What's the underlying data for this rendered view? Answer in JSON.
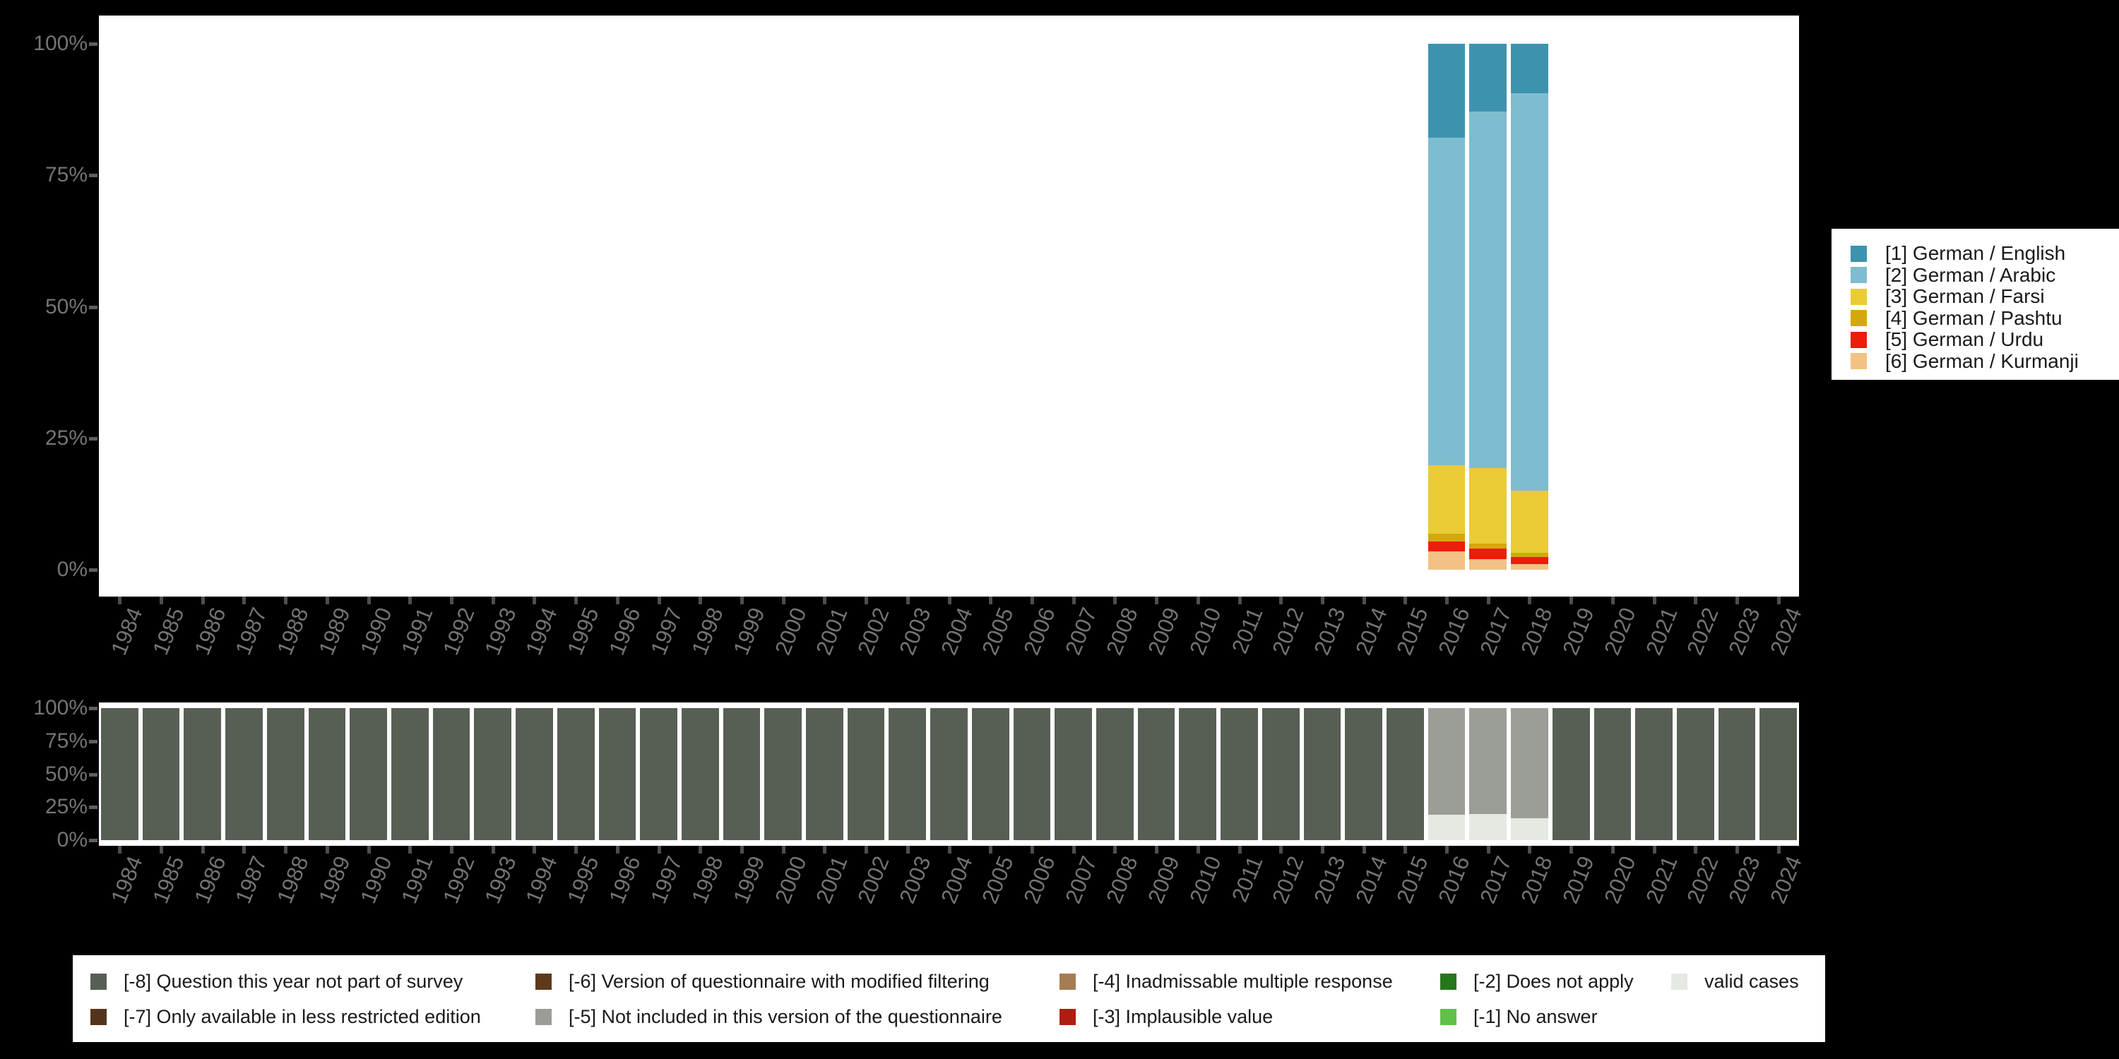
{
  "colors": {
    "background": "#000000",
    "panel": "#ffffff",
    "axis_text": "#747474",
    "tick": "#4e4e4e",
    "legend_text": "#1a1a1a"
  },
  "chart_data": [
    {
      "id": "values-chart",
      "type": "bar",
      "stacked_percent": true,
      "title": "",
      "xlabel": "",
      "ylabel": "",
      "grid": false,
      "legend_position": "right",
      "y_ticks": [
        "100%",
        "75%",
        "50%",
        "25%",
        "0%"
      ],
      "ylim": [
        0,
        100
      ],
      "categories": [
        1984,
        1985,
        1986,
        1987,
        1988,
        1989,
        1990,
        1991,
        1992,
        1993,
        1994,
        1995,
        1996,
        1997,
        1998,
        1999,
        2000,
        2001,
        2002,
        2003,
        2004,
        2005,
        2006,
        2007,
        2008,
        2009,
        2010,
        2011,
        2012,
        2013,
        2014,
        2015,
        2016,
        2017,
        2018,
        2019,
        2020,
        2021,
        2022,
        2023,
        2024
      ],
      "series": [
        {
          "name": "[1] German / English",
          "color": "#3d93ad",
          "values": {
            "2016": 17.9,
            "2017": 12.9,
            "2018": 9.4
          }
        },
        {
          "name": "[2] German / Arabic",
          "color": "#7ebccf",
          "values": {
            "2016": 62.3,
            "2017": 67.8,
            "2018": 75.6
          }
        },
        {
          "name": "[3] German / Farsi",
          "color": "#e9cc35",
          "values": {
            "2016": 12.9,
            "2017": 14.4,
            "2018": 11.8
          }
        },
        {
          "name": "[4] German / Pashtu",
          "color": "#d2a90c",
          "values": {
            "2016": 1.5,
            "2017": 0.9,
            "2018": 0.8
          }
        },
        {
          "name": "[5] German / Urdu",
          "color": "#ee1c0a",
          "values": {
            "2016": 1.9,
            "2017": 2.0,
            "2018": 1.3
          }
        },
        {
          "name": "[6] German / Kurmanji",
          "color": "#f2c183",
          "values": {
            "2016": 3.5,
            "2017": 2.0,
            "2018": 1.1
          }
        }
      ]
    },
    {
      "id": "missings-chart",
      "type": "bar",
      "stacked_percent": true,
      "title": "",
      "xlabel": "",
      "ylabel": "",
      "grid": false,
      "legend_position": "bottom",
      "y_ticks": [
        "100%",
        "75%",
        "50%",
        "25%",
        "0%"
      ],
      "ylim": [
        0,
        100
      ],
      "categories": [
        1984,
        1985,
        1986,
        1987,
        1988,
        1989,
        1990,
        1991,
        1992,
        1993,
        1994,
        1995,
        1996,
        1997,
        1998,
        1999,
        2000,
        2001,
        2002,
        2003,
        2004,
        2005,
        2006,
        2007,
        2008,
        2009,
        2010,
        2011,
        2012,
        2013,
        2014,
        2015,
        2016,
        2017,
        2018,
        2019,
        2020,
        2021,
        2022,
        2023,
        2024
      ],
      "series": [
        {
          "name": "[-8] Question this year not part of survey",
          "color": "#575f55",
          "values": [
            100,
            100,
            100,
            100,
            100,
            100,
            100,
            100,
            100,
            100,
            100,
            100,
            100,
            100,
            100,
            100,
            100,
            100,
            100,
            100,
            100,
            100,
            100,
            100,
            100,
            100,
            100,
            100,
            100,
            100,
            100,
            100,
            0,
            0,
            0,
            100,
            100,
            100,
            100,
            100,
            100
          ]
        },
        {
          "name": "[-5] Not included in this version of the questionnaire",
          "color": "#9a9e96",
          "values": [
            0,
            0,
            0,
            0,
            0,
            0,
            0,
            0,
            0,
            0,
            0,
            0,
            0,
            0,
            0,
            0,
            0,
            0,
            0,
            0,
            0,
            0,
            0,
            0,
            0,
            0,
            0,
            0,
            0,
            0,
            0,
            0,
            80.8,
            80.2,
            83.4,
            0,
            0,
            0,
            0,
            0,
            0
          ]
        },
        {
          "name": "valid cases",
          "color": "#e4e9e1",
          "values": [
            0,
            0,
            0,
            0,
            0,
            0,
            0,
            0,
            0,
            0,
            0,
            0,
            0,
            0,
            0,
            0,
            0,
            0,
            0,
            0,
            0,
            0,
            0,
            0,
            0,
            0,
            0,
            0,
            0,
            0,
            0,
            0,
            19.2,
            19.8,
            16.6,
            0,
            0,
            0,
            0,
            0,
            0
          ]
        }
      ]
    }
  ],
  "legend_right": {
    "items": [
      {
        "label": "[1] German / English",
        "color": "#3d93ad"
      },
      {
        "label": "[2] German / Arabic",
        "color": "#7ebccf"
      },
      {
        "label": "[3] German / Farsi",
        "color": "#e9cc35"
      },
      {
        "label": "[4] German / Pashtu",
        "color": "#d2a90c"
      },
      {
        "label": "[5] German / Urdu",
        "color": "#ee1c0a"
      },
      {
        "label": "[6] German / Kurmanji",
        "color": "#f2c183"
      }
    ]
  },
  "legend_bottom": {
    "rows": [
      [
        {
          "label": "[-8] Question this year not part of survey",
          "color": "#575f55"
        },
        {
          "label": "[-6] Version of questionnaire with modified filtering",
          "color": "#5d3a1a"
        },
        {
          "label": "[-4] Inadmissable multiple response",
          "color": "#a67c52"
        },
        {
          "label": "[-2] Does not apply",
          "color": "#26761b"
        },
        {
          "label": "valid cases",
          "color": "#e4e9e1"
        }
      ],
      [
        {
          "label": "[-7] Only available in less restricted edition",
          "color": "#53341b"
        },
        {
          "label": "[-5] Not included in this version of the questionnaire",
          "color": "#9a9e96"
        },
        {
          "label": "[-3] Implausible value",
          "color": "#ae1e10"
        },
        {
          "label": "[-1] No answer",
          "color": "#62bf4c"
        }
      ]
    ]
  }
}
